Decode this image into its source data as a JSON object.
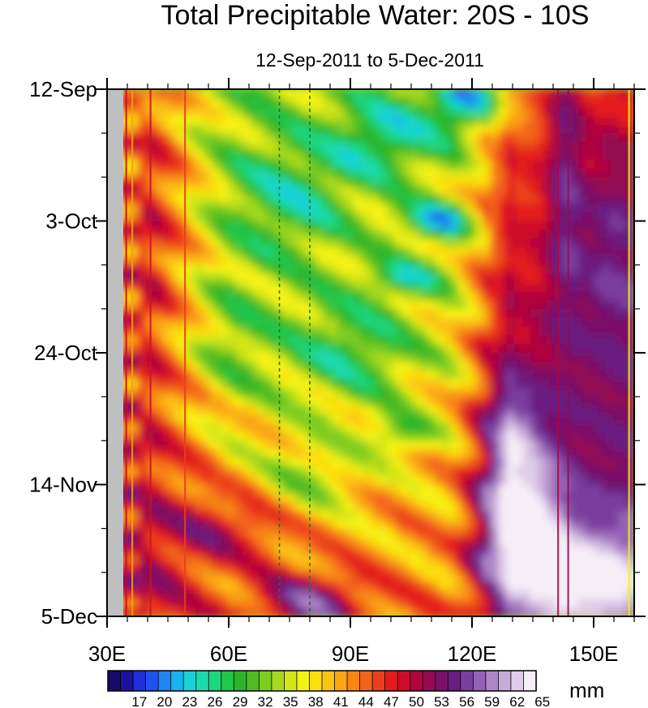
{
  "chart_data": {
    "type": "heatmap",
    "title": "Total Precipitable Water: 20S - 10S",
    "subtitle": "12-Sep-2011 to 5-Dec-2011",
    "x_axis": {
      "range": [
        30,
        160
      ],
      "ticks": [
        {
          "value": 30,
          "label": "30E"
        },
        {
          "value": 60,
          "label": "60E"
        },
        {
          "value": 90,
          "label": "90E"
        },
        {
          "value": 120,
          "label": "120E"
        },
        {
          "value": 150,
          "label": "150E"
        }
      ],
      "minor_step": 5
    },
    "y_axis": {
      "range": [
        "2011-09-12",
        "2011-12-05"
      ],
      "direction": "top-to-bottom",
      "ticks": [
        {
          "value": "2011-09-12",
          "label": "12-Sep"
        },
        {
          "value": "2011-10-03",
          "label": "3-Oct"
        },
        {
          "value": "2011-10-24",
          "label": "24-Oct"
        },
        {
          "value": "2011-11-14",
          "label": "14-Nov"
        },
        {
          "value": "2011-12-05",
          "label": "5-Dec"
        }
      ],
      "minor_step_days": 7
    },
    "colorbar": {
      "units": "mm",
      "levels": [
        17,
        20,
        23,
        26,
        29,
        32,
        35,
        38,
        41,
        44,
        47,
        50,
        53,
        56,
        59,
        62,
        65
      ],
      "colors": [
        "#160a6a",
        "#1e11a0",
        "#1f2ed6",
        "#1f53f0",
        "#1e86f2",
        "#1ab2ec",
        "#19d2d9",
        "#1ed9b0",
        "#1fd680",
        "#22c64b",
        "#2cb52a",
        "#4fbc24",
        "#7ccc22",
        "#a8d81f",
        "#d4e619",
        "#f5f212",
        "#fbde10",
        "#fbc312",
        "#faa512",
        "#f78612",
        "#f2631a",
        "#ec401c",
        "#e41c1e",
        "#cd0c2c",
        "#b0063e",
        "#930a52",
        "#7c1068",
        "#6a1c80",
        "#7a3e9e",
        "#9462b4",
        "#ae86c8",
        "#c8aad8",
        "#e0cce8",
        "#f6eef7"
      ]
    },
    "reference_lines": [
      {
        "x": 72.5,
        "style": "dashed",
        "color": "#1f7a1f"
      },
      {
        "x": 80,
        "style": "dashed",
        "color": "#1f7a1f"
      }
    ],
    "missing_region": {
      "x": [
        30,
        34
      ],
      "color": "#bfbfbf"
    },
    "features": {
      "easterly_moist_bands": "diagonal moist bands propagating eastward from ~40E to ~110E",
      "dry_core": "blue minima (~17-23 mm) near 70E-115E, mid-Sep to early Nov",
      "wet_east": "red/purple maxima (>50 mm) east of 120E and across most longitudes in late Nov-Dec"
    }
  }
}
